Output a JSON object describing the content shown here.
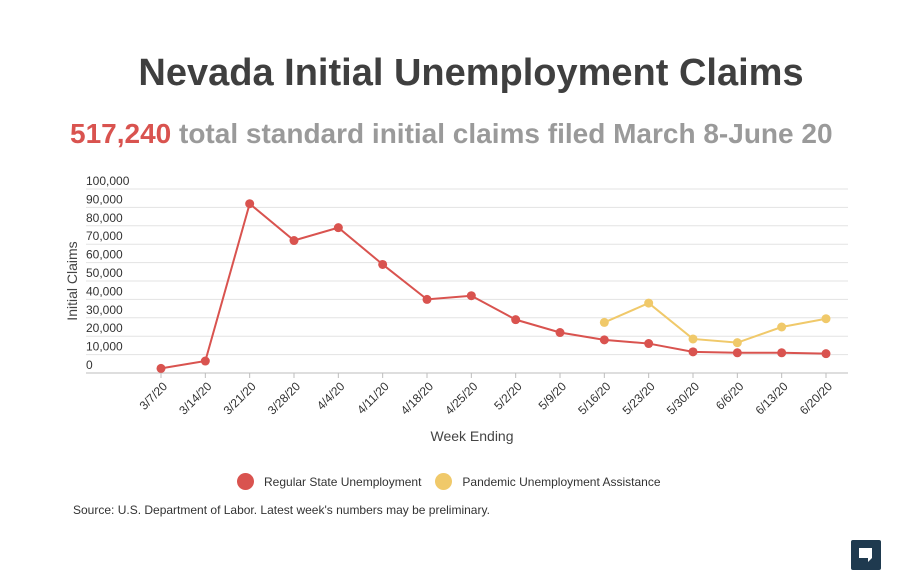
{
  "title": "Nevada Initial Unemployment Claims",
  "subtitle": {
    "number": "517,240",
    "text": "total standard initial claims filed March 8-June 20"
  },
  "source": "Source: U.S. Department of Labor. Latest week's numbers may be preliminary.",
  "logo_icon": "nevada-independent-logo-icon",
  "chart_data": {
    "type": "line",
    "xlabel": "Week Ending",
    "ylabel": "Initial Claims",
    "ylim": [
      0,
      100000
    ],
    "y_ticks": [
      "0",
      "10,000",
      "20,000",
      "30,000",
      "40,000",
      "50,000",
      "60,000",
      "70,000",
      "80,000",
      "90,000",
      "100,000"
    ],
    "categories": [
      "3/7/20",
      "3/14/20",
      "3/21/20",
      "3/28/20",
      "4/4/20",
      "4/11/20",
      "4/18/20",
      "4/25/20",
      "5/2/20",
      "5/9/20",
      "5/16/20",
      "5/23/20",
      "5/30/20",
      "6/6/20",
      "6/13/20",
      "6/20/20"
    ],
    "grid": true,
    "legend_position": "bottom",
    "series": [
      {
        "name": "Regular State Unemployment",
        "color": "#d9534f",
        "values": [
          2500,
          6500,
          92000,
          72000,
          79000,
          59000,
          40000,
          42000,
          29000,
          22000,
          18000,
          16000,
          11500,
          11000,
          11000,
          10500
        ]
      },
      {
        "name": "Pandemic Unemployment Assistance",
        "color": "#f0c96a",
        "values": [
          null,
          null,
          null,
          null,
          null,
          null,
          null,
          null,
          null,
          null,
          27500,
          38000,
          18500,
          16500,
          25000,
          29500
        ]
      }
    ]
  }
}
